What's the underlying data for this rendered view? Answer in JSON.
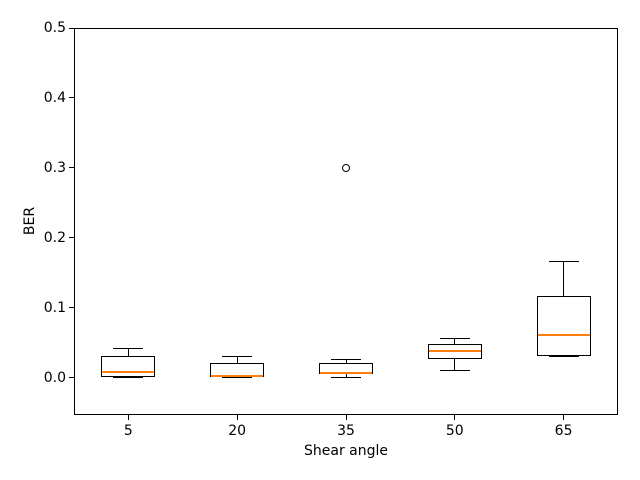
{
  "chart_data": {
    "type": "boxplot",
    "title": "",
    "xlabel": "Shear angle",
    "ylabel": "BER",
    "categories": [
      "5",
      "20",
      "35",
      "50",
      "65"
    ],
    "ytick_labels": [
      "0.0",
      "0.1",
      "0.2",
      "0.3",
      "0.4",
      "0.5"
    ],
    "yticks": [
      0.0,
      0.1,
      0.2,
      0.3,
      0.4,
      0.5
    ],
    "ylim": [
      -0.053,
      0.5
    ],
    "grid": false,
    "series": [
      {
        "category": "5",
        "whislo": 0.0,
        "q1": 0.001,
        "med": 0.008,
        "q3": 0.031,
        "whishi": 0.042,
        "fliers": []
      },
      {
        "category": "20",
        "whislo": 0.0,
        "q1": 0.001,
        "med": 0.003,
        "q3": 0.021,
        "whishi": 0.03,
        "fliers": []
      },
      {
        "category": "35",
        "whislo": 0.0,
        "q1": 0.005,
        "med": 0.007,
        "q3": 0.021,
        "whishi": 0.026,
        "fliers": [
          0.3
        ]
      },
      {
        "category": "50",
        "whislo": 0.011,
        "q1": 0.027,
        "med": 0.038,
        "q3": 0.048,
        "whishi": 0.057,
        "fliers": []
      },
      {
        "category": "65",
        "whislo": 0.03,
        "q1": 0.031,
        "med": 0.061,
        "q3": 0.117,
        "whishi": 0.167,
        "fliers": []
      }
    ],
    "colors": {
      "median": "#ff7f0e",
      "box": "#000000",
      "background": "#ffffff"
    }
  }
}
